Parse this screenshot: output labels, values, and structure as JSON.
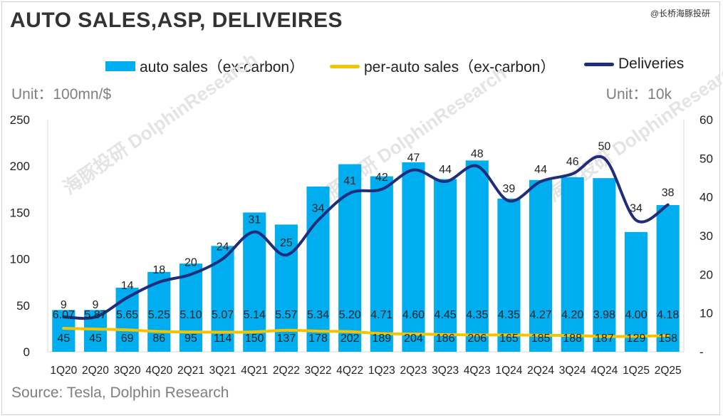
{
  "title": "AUTO SALES,ASP, DELIVEIRES",
  "brand": "@长桥海豚投研",
  "watermark": "海豚投研 DolphinResearch",
  "unit_left": "Unit：100mn/$",
  "unit_right": "Unit：10k",
  "source": "Source: Tesla, Dolphin Research",
  "colors": {
    "bar": "#00aeef",
    "asp": "#f5c400",
    "deliveries": "#1f2d7b"
  },
  "chart_data": {
    "type": "bar",
    "categories": [
      "1Q20",
      "2Q20",
      "3Q20",
      "4Q20",
      "2Q21",
      "3Q21",
      "4Q21",
      "2Q22",
      "3Q22",
      "4Q22",
      "1Q23",
      "2Q23",
      "3Q23",
      "4Q23",
      "1Q24",
      "2Q24",
      "3Q24",
      "4Q24",
      "1Q25",
      "2Q25"
    ],
    "series": [
      {
        "name": "auto sales（ex-carbon）",
        "type": "bar",
        "axis": "left",
        "values": [
          45,
          45,
          69,
          86,
          95,
          114,
          150,
          137,
          178,
          202,
          189,
          204,
          186,
          206,
          165,
          185,
          188,
          187,
          129,
          158
        ]
      },
      {
        "name": "per-auto sales（ex-carbon）",
        "type": "line",
        "axis": "right",
        "values": [
          6.07,
          5.87,
          5.65,
          5.25,
          5.1,
          5.07,
          5.14,
          5.57,
          5.34,
          5.2,
          4.71,
          4.6,
          4.45,
          4.35,
          4.35,
          4.27,
          4.2,
          3.98,
          4.0,
          4.18
        ]
      },
      {
        "name": "Deliveries",
        "type": "line",
        "axis": "right",
        "values": [
          9,
          9,
          14,
          18,
          20,
          24,
          31,
          25,
          34,
          41,
          42,
          47,
          44,
          48,
          39,
          44,
          46,
          50,
          34,
          38
        ]
      }
    ],
    "y_left": {
      "ylim": [
        0,
        250
      ],
      "ticks": [
        "0",
        "50",
        "100",
        "150",
        "200",
        "250"
      ]
    },
    "y_right": {
      "ylim": [
        0,
        60
      ],
      "ticks": [
        "-",
        "10",
        "20",
        "30",
        "40",
        "50",
        "60"
      ]
    },
    "legend": "top",
    "grid": false
  }
}
